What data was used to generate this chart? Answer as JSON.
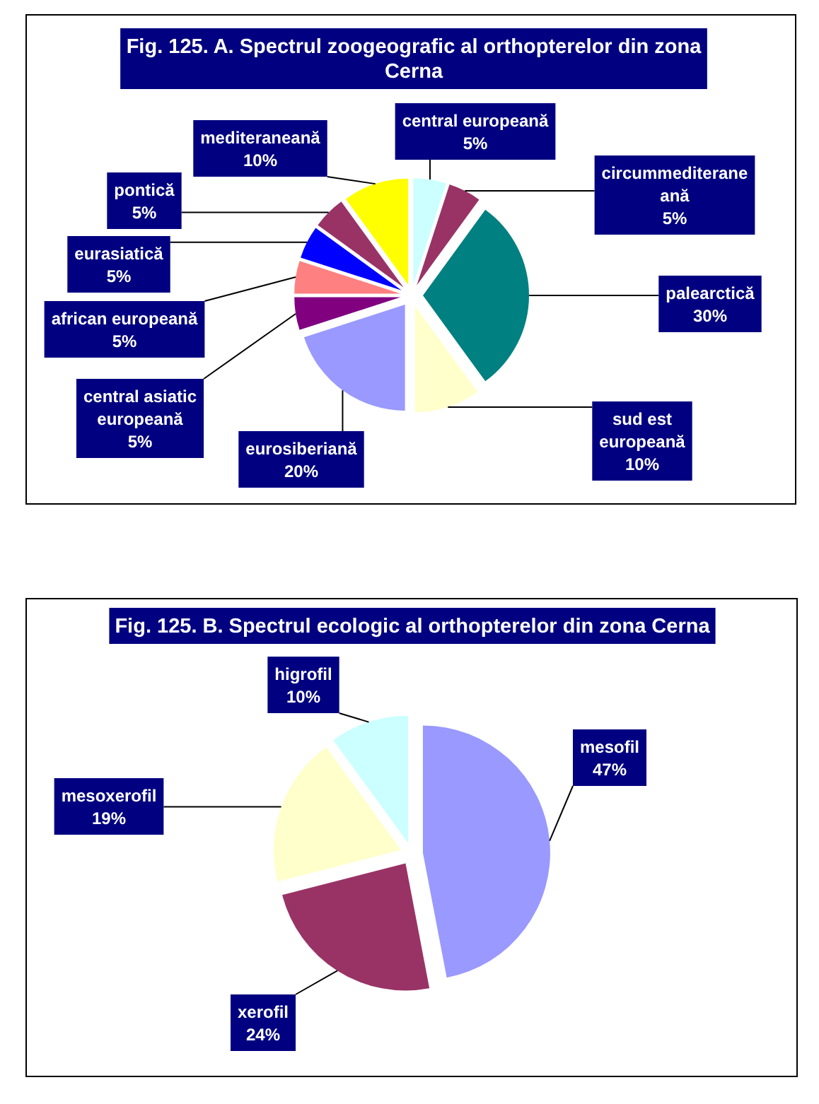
{
  "chart_data": [
    {
      "type": "pie",
      "title": "Fig. 125. A. Spectrul zoogeografic al orthopterelor din zona Cerna",
      "categories": [
        "central europeană",
        "circummediteraneană",
        "palearctică",
        "sud est europeană",
        "eurosiberiană",
        "central asiatic europeană",
        "african europeană",
        "eurasiatică",
        "pontică",
        "mediteraneană"
      ],
      "values": [
        5,
        5,
        30,
        10,
        20,
        5,
        5,
        5,
        5,
        10
      ],
      "value_labels": [
        "5%",
        "5%",
        "30%",
        "10%",
        "20%",
        "5%",
        "5%",
        "5%",
        "5%",
        "10%"
      ],
      "colors": [
        "#ccffff",
        "#993366",
        "#008080",
        "#ffffcc",
        "#9999ff",
        "#800080",
        "#ff8080",
        "#0000ff",
        "#993366",
        "#ffff00"
      ]
    },
    {
      "type": "pie",
      "title": "Fig. 125. B. Spectrul ecologic al orthopterelor din zona Cerna",
      "categories": [
        "mesofil",
        "xerofil",
        "mesoxerofil",
        "higrofil"
      ],
      "values": [
        47,
        24,
        19,
        10
      ],
      "value_labels": [
        "47%",
        "24%",
        "19%",
        "10%"
      ],
      "colors": [
        "#9999ff",
        "#993366",
        "#ffffcc",
        "#ccffff"
      ]
    }
  ]
}
